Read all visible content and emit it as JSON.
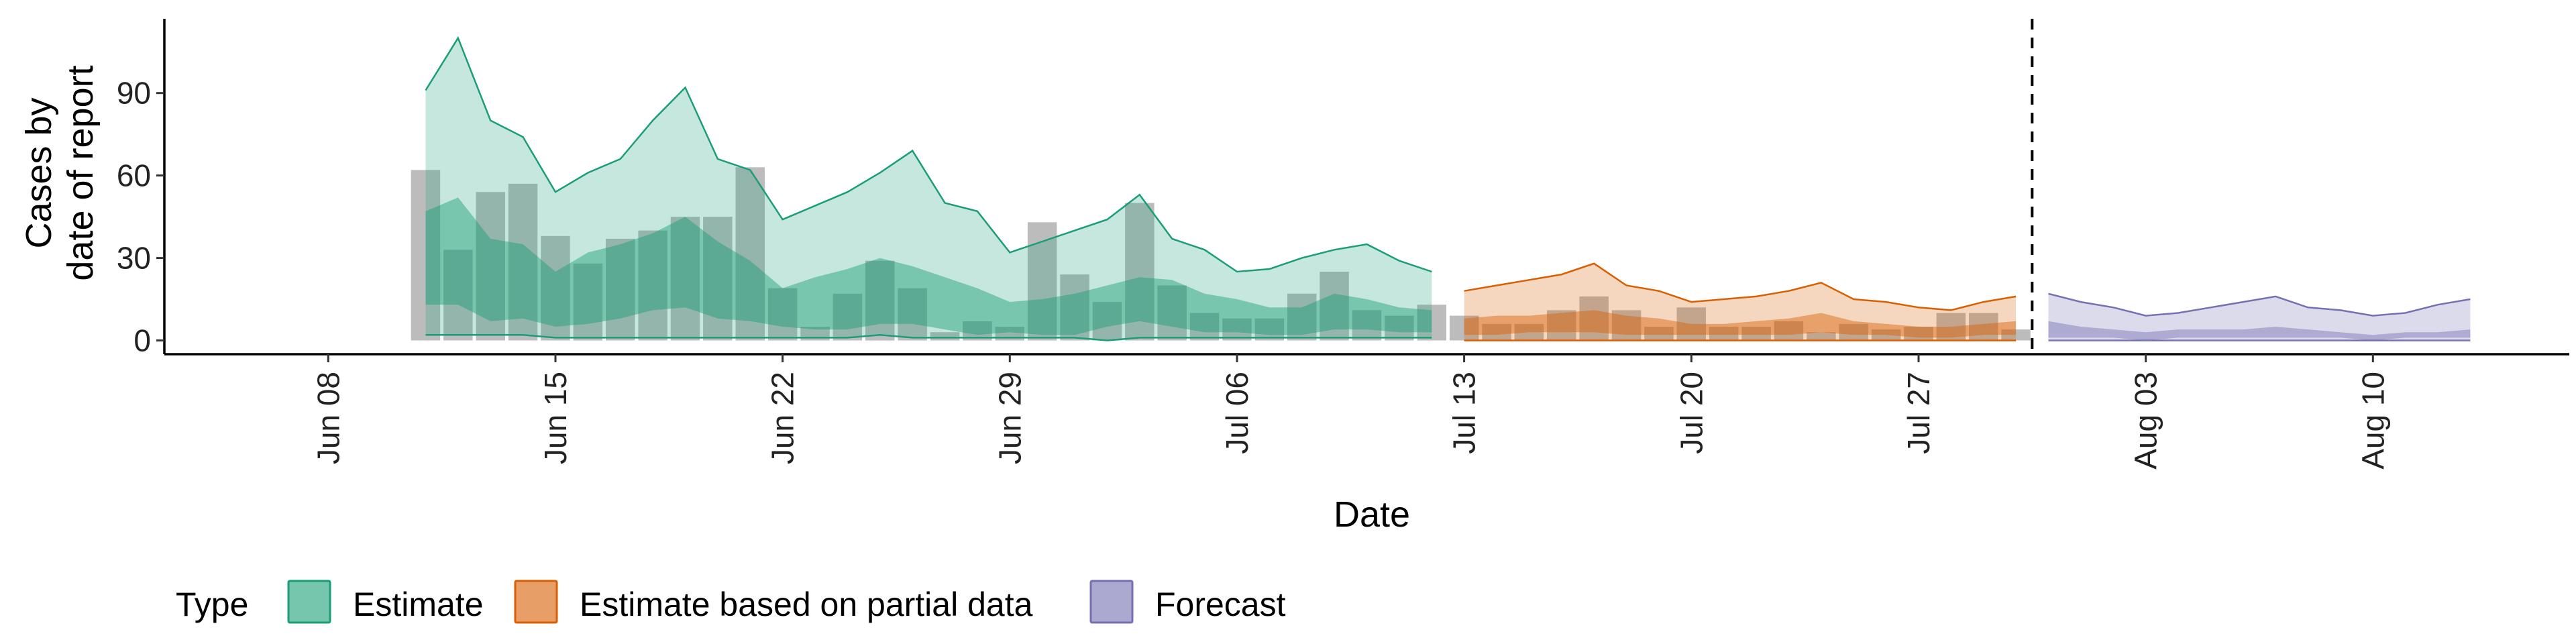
{
  "chart_data": {
    "type": "area",
    "xlabel": "Date",
    "ylabel_lines": [
      "Cases by",
      "date of report"
    ],
    "y_ticks": [
      0,
      30,
      60,
      90
    ],
    "ylim": [
      -5,
      117
    ],
    "x_ticks": [
      {
        "date": "2020-06-08",
        "label": "Jun 08"
      },
      {
        "date": "2020-06-15",
        "label": "Jun 15"
      },
      {
        "date": "2020-06-22",
        "label": "Jun 22"
      },
      {
        "date": "2020-06-29",
        "label": "Jun 29"
      },
      {
        "date": "2020-07-06",
        "label": "Jul 06"
      },
      {
        "date": "2020-07-13",
        "label": "Jul 13"
      },
      {
        "date": "2020-07-20",
        "label": "Jul 20"
      },
      {
        "date": "2020-07-27",
        "label": "Jul 27"
      },
      {
        "date": "2020-08-03",
        "label": "Aug 03"
      },
      {
        "date": "2020-08-10",
        "label": "Aug 10"
      }
    ],
    "xlim": [
      "2020-06-08",
      "2020-08-13"
    ],
    "vline_date": "2020-07-30",
    "legend_title": "Type",
    "legend_position": "bottom",
    "colors": {
      "estimate": "#1b9e77",
      "partial": "#d95f02",
      "forecast": "#7570b3",
      "bars": "#a6a6a6"
    },
    "reported_cases": {
      "start_date": "2020-06-11",
      "values": [
        62,
        33,
        54,
        57,
        38,
        28,
        37,
        40,
        45,
        45,
        63,
        19,
        5,
        17,
        29,
        19,
        3,
        7,
        5,
        43,
        24,
        14,
        50,
        20,
        10,
        8,
        8,
        17,
        25,
        11,
        9,
        13,
        9,
        6,
        6,
        11,
        16,
        11,
        5,
        12,
        5,
        5,
        7,
        3,
        6,
        4,
        5,
        10,
        10,
        4
      ]
    },
    "series": [
      {
        "name": "Estimate",
        "color_key": "estimate",
        "start_date": "2020-06-11",
        "outer_upper": [
          91,
          110,
          80,
          74,
          54,
          61,
          66,
          80,
          92,
          66,
          62,
          44,
          49,
          54,
          61,
          69,
          50,
          47,
          32,
          36,
          40,
          44,
          53,
          37,
          33,
          25,
          26,
          30,
          33,
          35,
          29,
          25
        ],
        "inner_upper": [
          47,
          52,
          37,
          35,
          25,
          32,
          35,
          39,
          45,
          36,
          29,
          19,
          23,
          26,
          30,
          27,
          23,
          19,
          14,
          15,
          17,
          20,
          23,
          22,
          17,
          15,
          12,
          12,
          17,
          15,
          12,
          11
        ],
        "inner_lower": [
          13,
          13,
          7,
          8,
          5,
          6,
          8,
          11,
          12,
          8,
          7,
          5,
          4,
          4,
          6,
          6,
          4,
          2,
          3,
          2,
          2,
          5,
          7,
          5,
          3,
          3,
          2,
          2,
          4,
          4,
          3,
          3
        ],
        "outer_lower": [
          2,
          2,
          2,
          2,
          1,
          1,
          1,
          1,
          1,
          1,
          1,
          1,
          1,
          1,
          2,
          1,
          1,
          1,
          1,
          1,
          1,
          0,
          1,
          1,
          1,
          1,
          1,
          1,
          1,
          1,
          1,
          1
        ]
      },
      {
        "name": "Estimate based on partial data",
        "color_key": "partial",
        "start_date": "2020-07-13",
        "outer_upper": [
          18,
          20,
          22,
          24,
          28,
          20,
          18,
          14,
          15,
          16,
          18,
          21,
          15,
          14,
          12,
          11,
          14,
          16
        ],
        "inner_upper": [
          8,
          9,
          9,
          10,
          11,
          9,
          8,
          6,
          6,
          7,
          8,
          10,
          7,
          6,
          5,
          5,
          6,
          7
        ],
        "inner_lower": [
          2,
          2,
          3,
          3,
          3,
          2,
          2,
          2,
          2,
          2,
          2,
          3,
          2,
          2,
          1,
          1,
          2,
          2
        ],
        "outer_lower": [
          0,
          0,
          0,
          0,
          0,
          0,
          0,
          0,
          0,
          0,
          0,
          0,
          0,
          0,
          0,
          0,
          0,
          0
        ]
      },
      {
        "name": "Forecast",
        "color_key": "forecast",
        "start_date": "2020-07-31",
        "outer_upper": [
          17,
          14,
          12,
          9,
          10,
          12,
          14,
          16,
          12,
          11,
          9,
          10,
          13,
          15
        ],
        "inner_upper": [
          7,
          5,
          4,
          3,
          4,
          4,
          4,
          5,
          4,
          3,
          2,
          3,
          3,
          4
        ],
        "inner_lower": [
          1,
          1,
          1,
          0,
          1,
          1,
          1,
          1,
          1,
          1,
          0,
          1,
          1,
          1
        ],
        "outer_lower": [
          0,
          0,
          0,
          0,
          0,
          0,
          0,
          0,
          0,
          0,
          0,
          0,
          0,
          0
        ]
      }
    ]
  }
}
